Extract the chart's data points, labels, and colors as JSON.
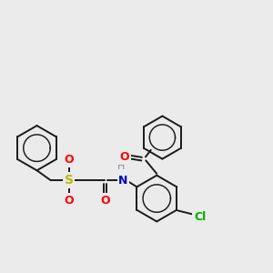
{
  "background_color": "#ebebeb",
  "bond_color": "#1a1a1a",
  "bond_width": 1.4,
  "atoms": {
    "S": {
      "color": "#b8b800",
      "fontsize": 10,
      "fontweight": "bold"
    },
    "O": {
      "color": "#ff0000",
      "fontsize": 9,
      "fontweight": "bold"
    },
    "N": {
      "color": "#0000cc",
      "fontsize": 9,
      "fontweight": "bold"
    },
    "H": {
      "color": "#888888",
      "fontsize": 8,
      "fontweight": "normal"
    },
    "Cl": {
      "color": "#00aa00",
      "fontsize": 9,
      "fontweight": "bold"
    }
  },
  "figsize": [
    3.0,
    3.0
  ],
  "dpi": 100
}
